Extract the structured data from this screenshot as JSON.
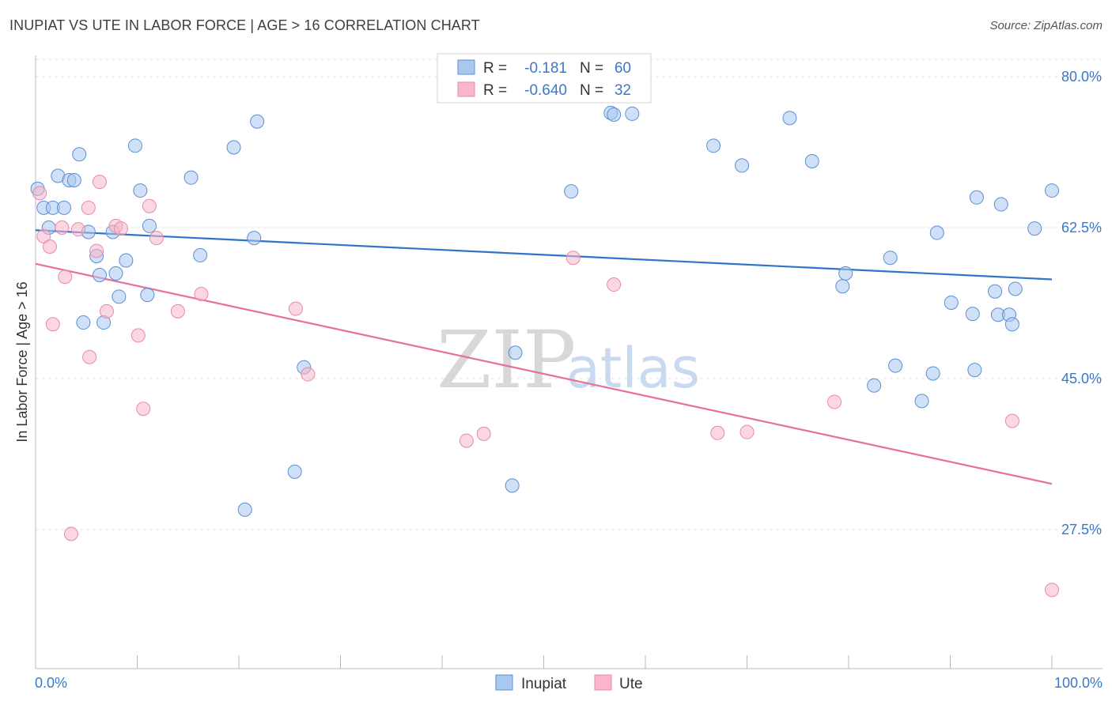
{
  "header": {
    "title": "INUPIAT VS UTE IN LABOR FORCE | AGE > 16 CORRELATION CHART",
    "source": "Source: ZipAtlas.com"
  },
  "watermark": {
    "zip": "ZIP",
    "atlas": "atlas"
  },
  "legend": {
    "rows": [
      {
        "r_label": "R =",
        "r_value": "-0.181",
        "n_label": "N =",
        "n_value": "60",
        "color": "#a9c8f0"
      },
      {
        "r_label": "R =",
        "r_value": "-0.640",
        "n_label": "N =",
        "n_value": "32",
        "color": "#f7b6c9"
      }
    ]
  },
  "bottom_legend": {
    "items": [
      {
        "label": "Inupiat",
        "color": "#a9c8f0"
      },
      {
        "label": "Ute",
        "color": "#f7b6c9"
      }
    ]
  },
  "chart_data": {
    "type": "scatter",
    "title": "INUPIAT VS UTE IN LABOR FORCE | AGE > 16 CORRELATION CHART",
    "xlabel": "",
    "ylabel": "In Labor Force | Age > 16",
    "xlim": [
      0,
      100
    ],
    "ylim": [
      13,
      82
    ],
    "x_tick_labels": [
      "0.0%",
      "100.0%"
    ],
    "y_ticks": [
      27.5,
      45.0,
      62.5,
      80.0
    ],
    "y_tick_labels": [
      "27.5%",
      "45.0%",
      "62.5%",
      "80.0%"
    ],
    "grid": true,
    "legend_position": "top-center",
    "series": [
      {
        "name": "Inupiat",
        "color": "#a9c8f0",
        "edge": "#5b8fd6",
        "trend": {
          "x": [
            0,
            100
          ],
          "y": [
            62.2,
            56.5
          ]
        },
        "points": [
          [
            0.2,
            67.0
          ],
          [
            0.8,
            64.8
          ],
          [
            1.3,
            62.5
          ],
          [
            1.7,
            64.8
          ],
          [
            2.2,
            68.5
          ],
          [
            2.8,
            64.8
          ],
          [
            3.3,
            68.0
          ],
          [
            3.8,
            68.0
          ],
          [
            4.3,
            71.0
          ],
          [
            4.7,
            51.5
          ],
          [
            5.2,
            62.0
          ],
          [
            6.0,
            59.2
          ],
          [
            6.3,
            57.0
          ],
          [
            6.7,
            51.5
          ],
          [
            7.6,
            62.0
          ],
          [
            7.9,
            57.2
          ],
          [
            8.2,
            54.5
          ],
          [
            8.9,
            58.7
          ],
          [
            9.8,
            72.0
          ],
          [
            10.3,
            66.8
          ],
          [
            11.0,
            54.7
          ],
          [
            11.2,
            62.7
          ],
          [
            15.3,
            68.3
          ],
          [
            16.2,
            59.3
          ],
          [
            19.5,
            71.8
          ],
          [
            20.6,
            29.8
          ],
          [
            21.5,
            61.3
          ],
          [
            21.8,
            74.8
          ],
          [
            25.5,
            34.2
          ],
          [
            26.4,
            46.3
          ],
          [
            46.9,
            32.6
          ],
          [
            47.2,
            48.0
          ],
          [
            52.7,
            66.7
          ],
          [
            56.6,
            75.8
          ],
          [
            56.9,
            75.6
          ],
          [
            58.7,
            75.7
          ],
          [
            66.7,
            72.0
          ],
          [
            69.5,
            69.7
          ],
          [
            74.2,
            75.2
          ],
          [
            76.4,
            70.2
          ],
          [
            79.4,
            55.7
          ],
          [
            79.7,
            57.2
          ],
          [
            82.5,
            44.2
          ],
          [
            84.1,
            59.0
          ],
          [
            84.6,
            46.5
          ],
          [
            87.2,
            42.4
          ],
          [
            88.3,
            45.6
          ],
          [
            88.7,
            61.9
          ],
          [
            90.1,
            53.8
          ],
          [
            92.2,
            52.5
          ],
          [
            92.4,
            46.0
          ],
          [
            92.6,
            66.0
          ],
          [
            94.4,
            55.1
          ],
          [
            94.7,
            52.4
          ],
          [
            95.0,
            65.2
          ],
          [
            95.8,
            52.4
          ],
          [
            96.1,
            51.3
          ],
          [
            96.4,
            55.4
          ],
          [
            98.3,
            62.4
          ],
          [
            100.0,
            66.8
          ]
        ]
      },
      {
        "name": "Ute",
        "color": "#f7b6c9",
        "edge": "#e88aa8",
        "trend": {
          "x": [
            0,
            100
          ],
          "y": [
            58.3,
            32.8
          ]
        },
        "points": [
          [
            0.4,
            66.5
          ],
          [
            0.8,
            61.5
          ],
          [
            1.4,
            60.3
          ],
          [
            1.7,
            51.3
          ],
          [
            2.6,
            62.5
          ],
          [
            2.9,
            56.8
          ],
          [
            3.5,
            27.0
          ],
          [
            4.2,
            62.3
          ],
          [
            5.2,
            64.8
          ],
          [
            5.3,
            47.5
          ],
          [
            6.0,
            59.8
          ],
          [
            6.3,
            67.8
          ],
          [
            7.0,
            52.8
          ],
          [
            7.9,
            62.7
          ],
          [
            8.4,
            62.4
          ],
          [
            10.1,
            50.0
          ],
          [
            10.6,
            41.5
          ],
          [
            11.2,
            65.0
          ],
          [
            11.9,
            61.3
          ],
          [
            14.0,
            52.8
          ],
          [
            16.3,
            54.8
          ],
          [
            25.6,
            53.1
          ],
          [
            26.8,
            45.5
          ],
          [
            42.4,
            37.8
          ],
          [
            44.1,
            38.6
          ],
          [
            52.9,
            59.0
          ],
          [
            56.9,
            55.9
          ],
          [
            67.1,
            38.7
          ],
          [
            70.0,
            38.8
          ],
          [
            78.6,
            42.3
          ],
          [
            96.1,
            40.1
          ],
          [
            100.0,
            20.5
          ]
        ]
      }
    ]
  }
}
